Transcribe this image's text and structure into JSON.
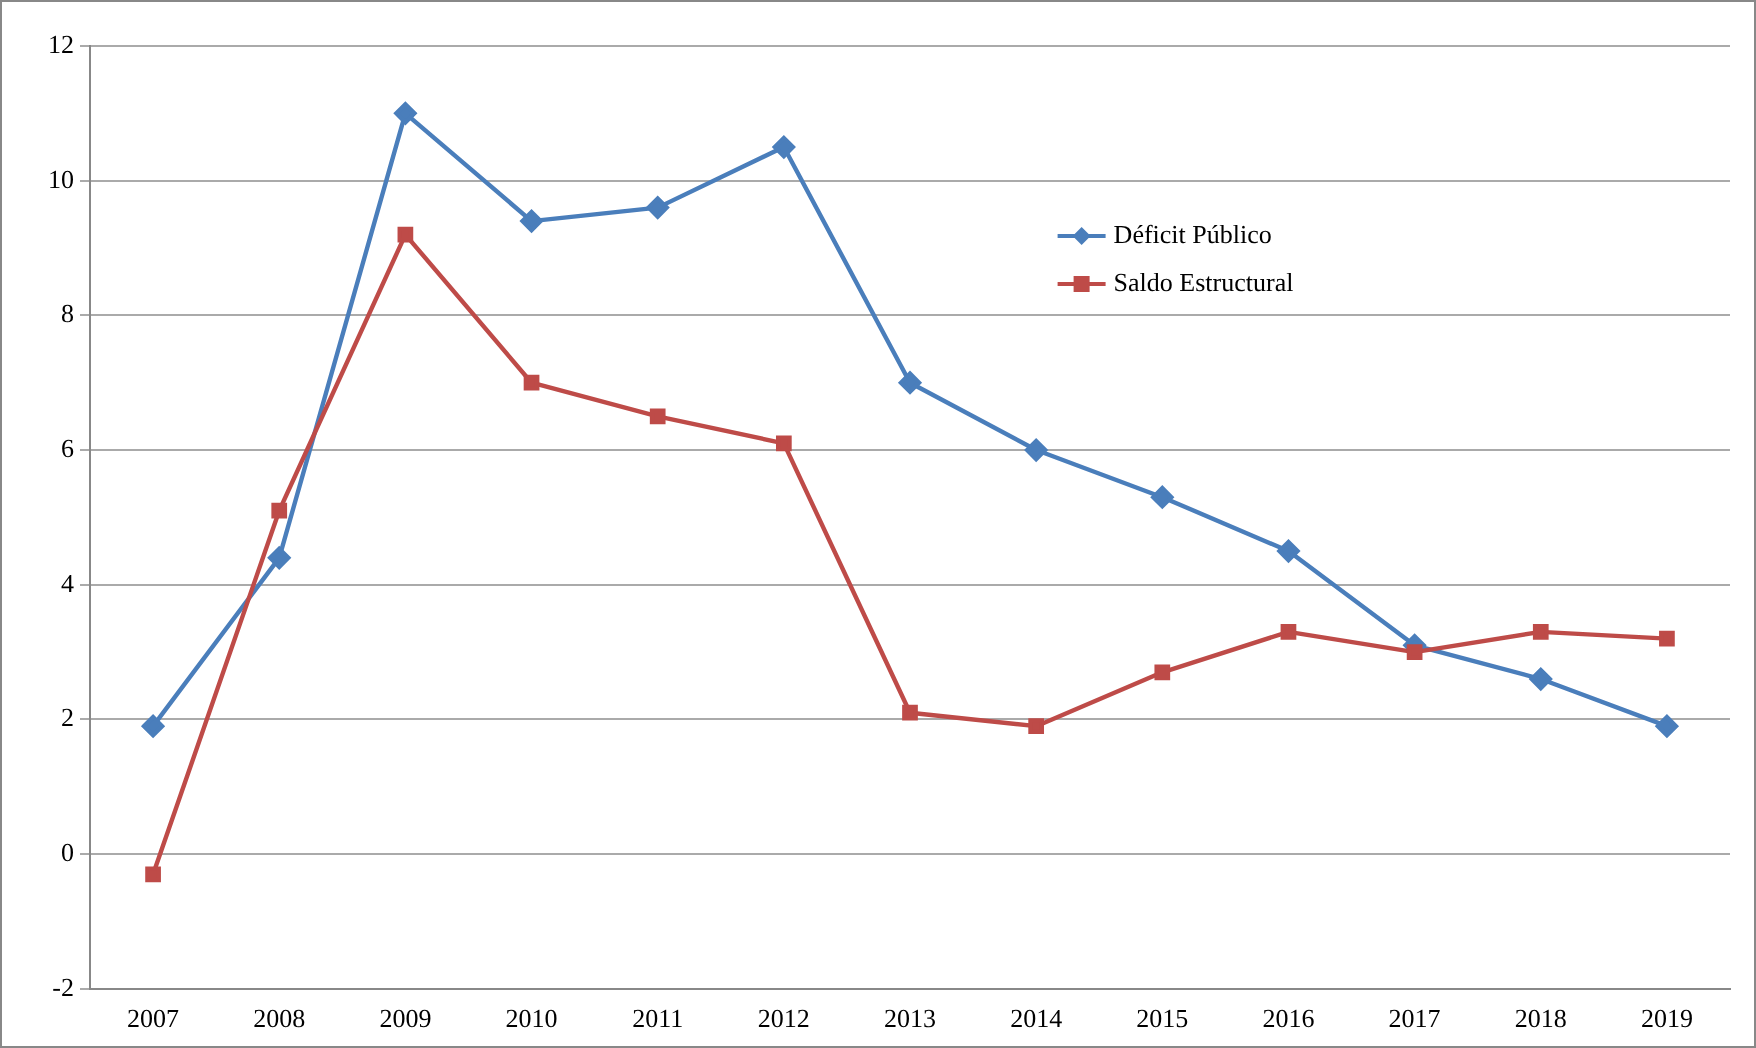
{
  "chart_data": {
    "type": "line",
    "categories": [
      "2007",
      "2008",
      "2009",
      "2010",
      "2011",
      "2012",
      "2013",
      "2014",
      "2015",
      "2016",
      "2017",
      "2018",
      "2019"
    ],
    "series": [
      {
        "name": "Déficit Público",
        "color": "#4a7ebb",
        "marker": "diamond",
        "values": [
          1.9,
          4.4,
          11.0,
          9.4,
          9.6,
          10.5,
          7.0,
          6.0,
          5.3,
          4.5,
          3.1,
          2.6,
          1.9
        ]
      },
      {
        "name": "Saldo Estructural",
        "color": "#be4b48",
        "marker": "square",
        "values": [
          -0.3,
          5.1,
          9.2,
          7.0,
          6.5,
          6.1,
          2.1,
          1.9,
          2.7,
          3.3,
          3.0,
          3.3,
          3.2
        ]
      }
    ],
    "ylim": [
      -2,
      12
    ],
    "yticks": [
      -2,
      0,
      2,
      4,
      6,
      8,
      10,
      12
    ],
    "grid": "y",
    "legend": "top right",
    "line_style": "solid"
  }
}
